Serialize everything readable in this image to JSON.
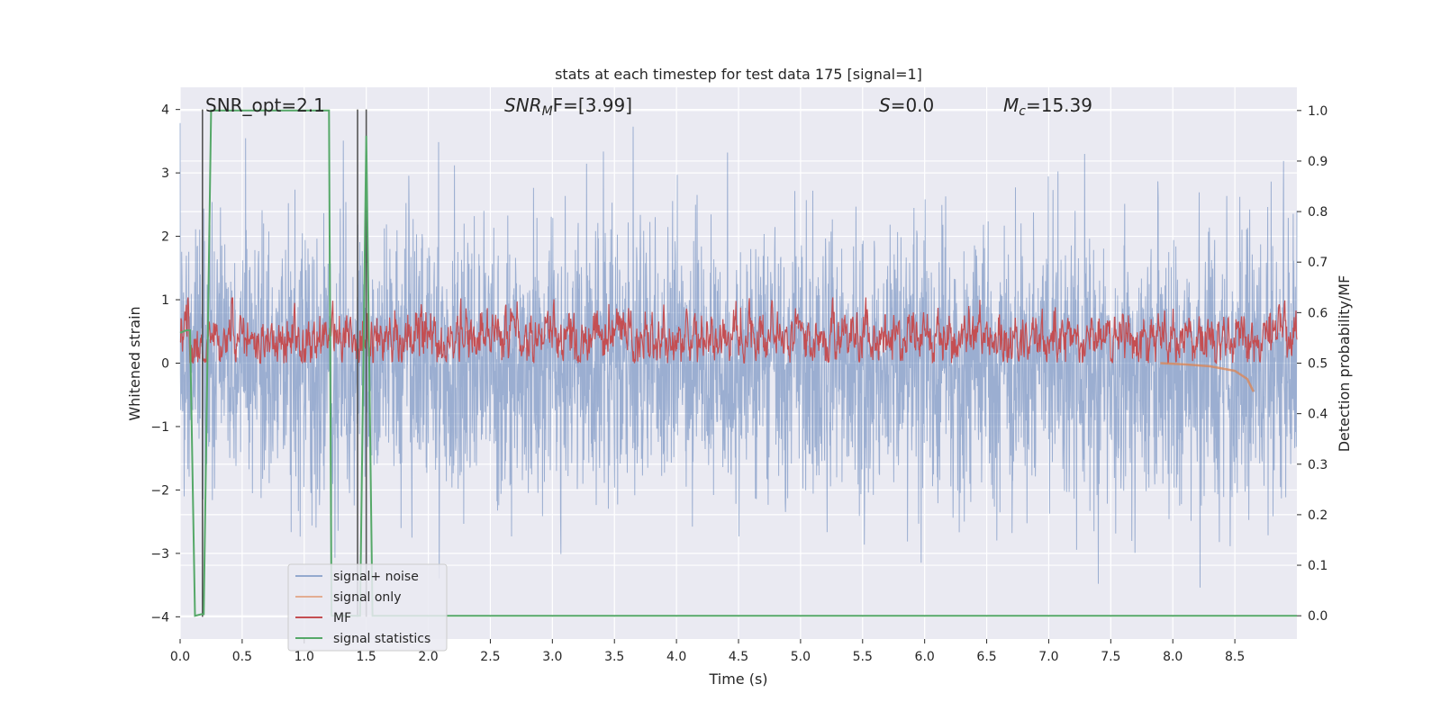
{
  "chart_data": {
    "type": "line",
    "title": "stats at each timestep for test data 175 [signal=1]",
    "xlabel": "Time (s)",
    "ylabel": "Whitened strain",
    "ylabel_right": "Detection probability/MF",
    "xlim": [
      0,
      9.0
    ],
    "ylim": [
      -4.35,
      4.35
    ],
    "ylim_right": [
      -0.046,
      1.046
    ],
    "x_ticks": [
      0.0,
      0.5,
      1.0,
      1.5,
      2.0,
      2.5,
      3.0,
      3.5,
      4.0,
      4.5,
      5.0,
      5.5,
      6.0,
      6.5,
      7.0,
      7.5,
      8.0,
      8.5
    ],
    "x_tick_labels": [
      "0.0",
      "0.5",
      "1.0",
      "1.5",
      "2.0",
      "2.5",
      "3.0",
      "3.5",
      "4.0",
      "4.5",
      "5.0",
      "5.5",
      "6.0",
      "6.5",
      "7.0",
      "7.5",
      "8.0",
      "8.5"
    ],
    "y_ticks": [
      -4,
      -3,
      -2,
      -1,
      0,
      1,
      2,
      3,
      4
    ],
    "y_tick_labels": [
      "−4",
      "−3",
      "−2",
      "−1",
      "0",
      "1",
      "2",
      "3",
      "4"
    ],
    "y_right_ticks": [
      0.0,
      0.1,
      0.2,
      0.3,
      0.4,
      0.5,
      0.6,
      0.7,
      0.8,
      0.9,
      1.0
    ],
    "y_right_tick_labels": [
      "0.0",
      "0.1",
      "0.2",
      "0.3",
      "0.4",
      "0.5",
      "0.6",
      "0.7",
      "0.8",
      "0.9",
      "1.0"
    ],
    "grid": true,
    "legend_position": "lower-left",
    "annotations": {
      "snr_opt": "SNR_opt=2.1",
      "snr_mf_label": "SNR",
      "snr_mf_sub": "M",
      "snr_mf_suffix": "F=[3.99]",
      "s_label": "S",
      "s_value": "=0.0",
      "mc_label": "M",
      "mc_sub": "c",
      "mc_value": "=15.39"
    },
    "vertical_markers": [
      0.18,
      1.43,
      1.5
    ],
    "series": [
      {
        "name": "signal+ noise",
        "color": "#4c72b0",
        "axis": "left",
        "description_values": "noise-dominated whitened strain, roughly within ±4"
      },
      {
        "name": "signal only",
        "color": "#dd8452",
        "axis": "left",
        "x": [
          7.9,
          8.1,
          8.3,
          8.5,
          8.6,
          8.65
        ],
        "values": [
          0.0,
          -0.02,
          -0.05,
          -0.12,
          -0.25,
          -0.45
        ]
      },
      {
        "name": "MF",
        "color": "#c44e52",
        "axis": "right",
        "description_values": "matched filter output between 0.5 and 0.62"
      },
      {
        "name": "signal statistics",
        "color": "#55a868",
        "axis": "right",
        "x": [
          0.0,
          0.05,
          0.08,
          0.12,
          0.17,
          0.19,
          0.25,
          1.2,
          1.22,
          1.4,
          1.45,
          1.5,
          1.55,
          1.6,
          9.0
        ],
        "values": [
          0.56,
          0.565,
          0.565,
          0.0,
          0.003,
          0.003,
          1.0,
          1.0,
          0.0,
          0.0,
          0.0,
          0.95,
          0.0,
          0.0,
          0.0
        ]
      }
    ]
  },
  "colors": {
    "plot_background": "#eaeaf2",
    "grid": "#ffffff",
    "marker_line": "#555555"
  }
}
